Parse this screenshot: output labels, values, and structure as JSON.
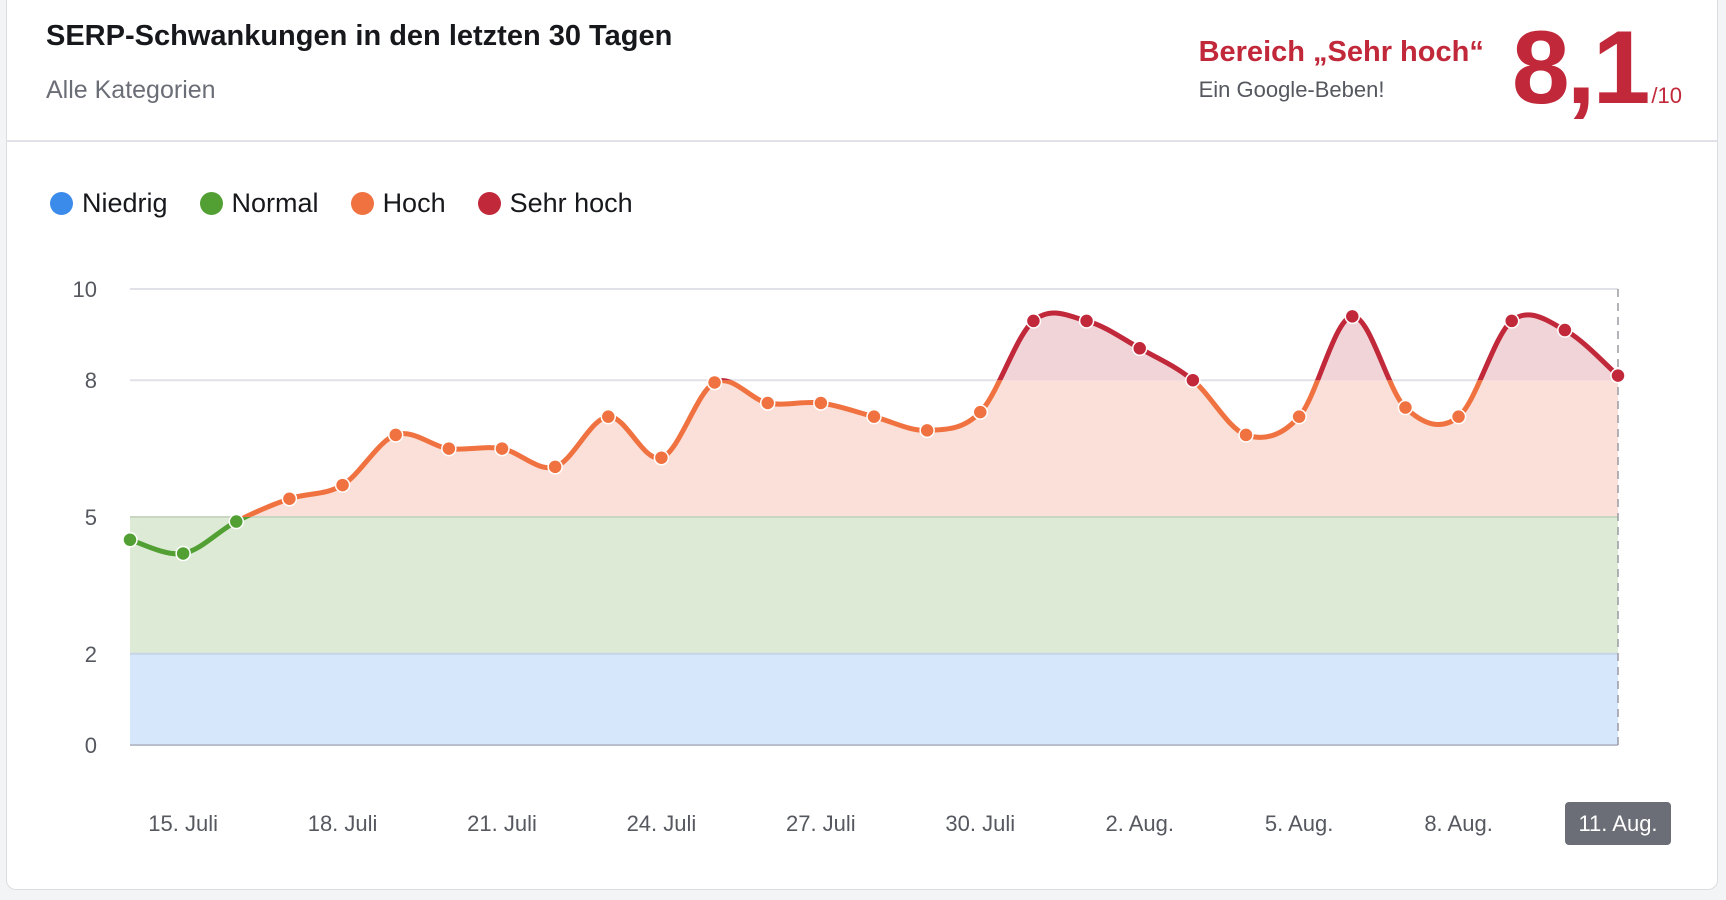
{
  "header": {
    "title": "SERP-Schwankungen in den letzten 30 Tagen",
    "subtitle": "Alle Kategorien",
    "range_label": "Bereich „Sehr hoch“",
    "range_description": "Ein Google-Beben!",
    "score": "8,1",
    "score_max": "/10",
    "accent_color": "#c1283a"
  },
  "legend": [
    {
      "label": "Niedrig",
      "color": "#3b8beb"
    },
    {
      "label": "Normal",
      "color": "#52a034"
    },
    {
      "label": "Hoch",
      "color": "#ef7240"
    },
    {
      "label": "Sehr hoch",
      "color": "#c1283a"
    }
  ],
  "chart_data": {
    "type": "area",
    "ylim": [
      0,
      10
    ],
    "y_ticks": [
      0,
      2,
      5,
      8,
      10
    ],
    "grid": true,
    "legend_placement": "top-left",
    "bands": [
      {
        "name": "Niedrig",
        "from": 0,
        "to": 2,
        "color": "#3b8beb",
        "fill": "#d6e6fb"
      },
      {
        "name": "Normal",
        "from": 2,
        "to": 5,
        "color": "#52a034",
        "fill": "#ddebd6"
      },
      {
        "name": "Hoch",
        "from": 5,
        "to": 8,
        "color": "#ef7240",
        "fill": "#fae0d8"
      },
      {
        "name": "Sehr hoch",
        "from": 8,
        "to": 10,
        "color": "#c1283a",
        "fill": "#f1d4d8"
      }
    ],
    "x": [
      "14. Juli",
      "15. Juli",
      "16. Juli",
      "17. Juli",
      "18. Juli",
      "19. Juli",
      "20. Juli",
      "21. Juli",
      "22. Juli",
      "23. Juli",
      "24. Juli",
      "25. Juli",
      "26. Juli",
      "27. Juli",
      "28. Juli",
      "29. Juli",
      "30. Juli",
      "31. Juli",
      "1. Aug.",
      "2. Aug.",
      "3. Aug.",
      "4. Aug.",
      "5. Aug.",
      "6. Aug.",
      "7. Aug.",
      "8. Aug.",
      "9. Aug.",
      "10. Aug.",
      "11. Aug."
    ],
    "values": [
      4.5,
      4.2,
      4.9,
      5.4,
      5.7,
      6.8,
      6.5,
      6.5,
      6.1,
      7.2,
      6.3,
      7.95,
      7.5,
      7.5,
      7.2,
      6.9,
      7.3,
      9.3,
      9.3,
      8.7,
      8.0,
      6.8,
      7.2,
      9.4,
      7.4,
      7.2,
      9.3,
      9.1,
      8.1
    ],
    "x_tick_labels": [
      "15. Juli",
      "18. Juli",
      "21. Juli",
      "24. Juli",
      "27. Juli",
      "30. Juli",
      "2. Aug.",
      "5. Aug.",
      "8. Aug.",
      "11. Aug."
    ],
    "highlighted_x": "11. Aug."
  }
}
